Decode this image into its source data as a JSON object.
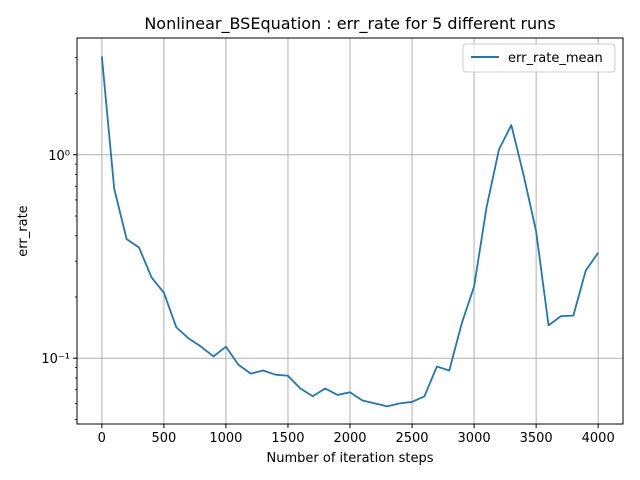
{
  "chart_data": {
    "type": "line",
    "title": "Nonlinear_BSEquation : err_rate for 5 different runs",
    "xlabel": "Number of iteration steps",
    "ylabel": "err_rate",
    "xlim": [
      -200,
      4200
    ],
    "ylim": [
      0.0475,
      3.75
    ],
    "y_scale": "log",
    "grid": true,
    "legend_position": "top-right",
    "x_ticks": [
      0,
      500,
      1000,
      1500,
      2000,
      2500,
      3000,
      3500,
      4000
    ],
    "x_tick_labels": [
      "0",
      "500",
      "1000",
      "1500",
      "2000",
      "2500",
      "3000",
      "3500",
      "4000"
    ],
    "y_ticks": [
      0.1,
      1
    ],
    "y_tick_labels": [
      "10⁻¹",
      "10⁰"
    ],
    "series": [
      {
        "name": "err_rate_mean",
        "color": "#1f77b4",
        "x": [
          0,
          100,
          200,
          300,
          400,
          500,
          600,
          700,
          800,
          900,
          1000,
          1100,
          1200,
          1300,
          1400,
          1500,
          1600,
          1700,
          1800,
          1900,
          2000,
          2100,
          2200,
          2300,
          2400,
          2500,
          2600,
          2700,
          2800,
          2900,
          3000,
          3100,
          3200,
          3300,
          3400,
          3500,
          3600,
          3700,
          3800,
          3900,
          4000
        ],
        "y": [
          3.05,
          0.68,
          0.385,
          0.35,
          0.25,
          0.21,
          0.142,
          0.125,
          0.114,
          0.102,
          0.114,
          0.093,
          0.084,
          0.087,
          0.083,
          0.082,
          0.071,
          0.065,
          0.071,
          0.066,
          0.068,
          0.062,
          0.06,
          0.058,
          0.06,
          0.061,
          0.065,
          0.091,
          0.087,
          0.148,
          0.225,
          0.55,
          1.06,
          1.4,
          0.79,
          0.42,
          0.145,
          0.161,
          0.162,
          0.27,
          0.33
        ]
      }
    ]
  }
}
